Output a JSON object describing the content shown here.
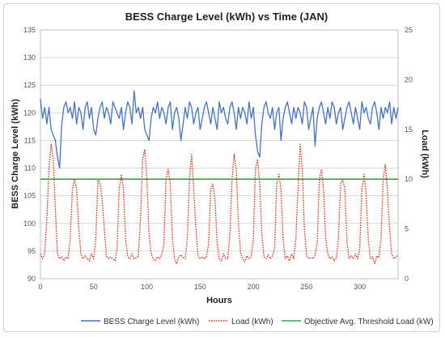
{
  "chart_data": {
    "type": "line",
    "title": "BESS Charge Level (kWh) vs Time (JAN)",
    "xlabel": "Hours",
    "ylabel_left": "BESS Charge Level (kWh)",
    "ylabel_right": "Load (kWh)",
    "xlim": [
      0,
      336
    ],
    "ylim_left": [
      90,
      135
    ],
    "ylim_right": [
      0,
      25
    ],
    "x_ticks": [
      "0",
      "50",
      "100",
      "150",
      "200",
      "250",
      "300"
    ],
    "x_tick_values": [
      0,
      50,
      100,
      150,
      200,
      250,
      300
    ],
    "y_left_ticks": [
      "90",
      "95",
      "100",
      "105",
      "110",
      "115",
      "120",
      "125",
      "130",
      "135"
    ],
    "y_left_tick_values": [
      90,
      95,
      100,
      105,
      110,
      115,
      120,
      125,
      130,
      135
    ],
    "y_right_ticks": [
      "0",
      "5",
      "10",
      "15",
      "20",
      "25"
    ],
    "y_right_tick_values": [
      0,
      5,
      10,
      15,
      20,
      25
    ],
    "grid": true,
    "legend_position": "bottom",
    "series": [
      {
        "name": "BESS Charge Level (kWh)",
        "axis": "left",
        "color": "#4472c4",
        "style": "solid",
        "x": [
          0,
          2,
          4,
          6,
          8,
          10,
          12,
          14,
          16,
          18,
          20,
          22,
          24,
          26,
          28,
          30,
          32,
          34,
          36,
          38,
          40,
          42,
          44,
          46,
          48,
          50,
          52,
          54,
          56,
          58,
          60,
          62,
          64,
          66,
          68,
          70,
          72,
          74,
          76,
          78,
          80,
          82,
          84,
          86,
          88,
          90,
          92,
          94,
          96,
          98,
          100,
          102,
          104,
          106,
          108,
          110,
          112,
          114,
          116,
          118,
          120,
          122,
          124,
          126,
          128,
          130,
          132,
          134,
          136,
          138,
          140,
          142,
          144,
          146,
          148,
          150,
          152,
          154,
          156,
          158,
          160,
          162,
          164,
          166,
          168,
          170,
          172,
          174,
          176,
          178,
          180,
          182,
          184,
          186,
          188,
          190,
          192,
          194,
          196,
          198,
          200,
          202,
          204,
          206,
          208,
          210,
          212,
          214,
          216,
          218,
          220,
          222,
          224,
          226,
          228,
          230,
          232,
          234,
          236,
          238,
          240,
          242,
          244,
          246,
          248,
          250,
          252,
          254,
          256,
          258,
          260,
          262,
          264,
          266,
          268,
          270,
          272,
          274,
          276,
          278,
          280,
          282,
          284,
          286,
          288,
          290,
          292,
          294,
          296,
          298,
          300,
          302,
          304,
          306,
          308,
          310,
          312,
          314,
          316,
          318,
          320,
          322,
          324,
          326,
          328,
          330,
          332,
          334,
          336
        ],
        "values": [
          122.5,
          119,
          121,
          118,
          121,
          117,
          116,
          115,
          112,
          110,
          118,
          121,
          122,
          120,
          121,
          119,
          122,
          118,
          121,
          120,
          117,
          121,
          122,
          119,
          121,
          117,
          116,
          119,
          121,
          122,
          119,
          121,
          120,
          118,
          122,
          121,
          120,
          119,
          121,
          117,
          120,
          122,
          121,
          118,
          124,
          120,
          121,
          119,
          121,
          117,
          116,
          115,
          119,
          121,
          120,
          122,
          119,
          121,
          120,
          118,
          121,
          122,
          117,
          120,
          121,
          119,
          115,
          118,
          121,
          119,
          122,
          121,
          118,
          120,
          121,
          117,
          119,
          121,
          122,
          120,
          118,
          121,
          119,
          117,
          122,
          120,
          121,
          119,
          118,
          121,
          122,
          120,
          117,
          121,
          119,
          121,
          120,
          118,
          122,
          119,
          121,
          116,
          113,
          112,
          118,
          121,
          122,
          120,
          119,
          121,
          117,
          120,
          121,
          115,
          119,
          121,
          122,
          120,
          118,
          121,
          119,
          121,
          120,
          118,
          122,
          121,
          117,
          119,
          121,
          114,
          119,
          121,
          122,
          120,
          118,
          121,
          119,
          122,
          121,
          118,
          120,
          121,
          117,
          119,
          121,
          122,
          120,
          118,
          121,
          119,
          117,
          122,
          120,
          121,
          119,
          118,
          121,
          122,
          120,
          117,
          121,
          119,
          121,
          120,
          122,
          118,
          121,
          119,
          121
        ]
      },
      {
        "name": "Load (kWh)",
        "axis": "right",
        "color": "#e0301e",
        "style": "dotted",
        "x": [
          0,
          2,
          4,
          6,
          8,
          10,
          12,
          14,
          16,
          18,
          20,
          22,
          24,
          26,
          28,
          30,
          32,
          34,
          36,
          38,
          40,
          42,
          44,
          46,
          48,
          50,
          52,
          54,
          56,
          58,
          60,
          62,
          64,
          66,
          68,
          70,
          72,
          74,
          76,
          78,
          80,
          82,
          84,
          86,
          88,
          90,
          92,
          94,
          96,
          98,
          100,
          102,
          104,
          106,
          108,
          110,
          112,
          114,
          116,
          118,
          120,
          122,
          124,
          126,
          128,
          130,
          132,
          134,
          136,
          138,
          140,
          142,
          144,
          146,
          148,
          150,
          152,
          154,
          156,
          158,
          160,
          162,
          164,
          166,
          168,
          170,
          172,
          174,
          176,
          178,
          180,
          182,
          184,
          186,
          188,
          190,
          192,
          194,
          196,
          198,
          200,
          202,
          204,
          206,
          208,
          210,
          212,
          214,
          216,
          218,
          220,
          222,
          224,
          226,
          228,
          230,
          232,
          234,
          236,
          238,
          240,
          242,
          244,
          246,
          248,
          250,
          252,
          254,
          256,
          258,
          260,
          262,
          264,
          266,
          268,
          270,
          272,
          274,
          276,
          278,
          280,
          282,
          284,
          286,
          288,
          290,
          292,
          294,
          296,
          298,
          300,
          302,
          304,
          306,
          308,
          310,
          312,
          314,
          316,
          318,
          320,
          322,
          324,
          326,
          328,
          330,
          332,
          334,
          336
        ],
        "values": [
          2.5,
          2,
          2.6,
          6,
          11,
          13.5,
          12,
          7,
          2.5,
          2,
          2.2,
          1.8,
          2.2,
          2,
          4,
          9,
          10,
          9,
          5,
          2.5,
          2,
          2.3,
          2,
          1.8,
          2.5,
          2,
          4,
          10,
          9.5,
          8,
          5,
          2.3,
          2,
          2.2,
          2,
          1.8,
          3,
          9,
          10.5,
          9,
          4,
          2.2,
          2,
          2.5,
          2,
          2.1,
          2.3,
          6,
          12,
          13,
          10,
          4.5,
          2.5,
          2,
          1.8,
          2.2,
          2,
          2.4,
          3.5,
          10,
          11,
          9.5,
          4,
          2,
          1.5,
          2.2,
          2.4,
          2.1,
          2,
          4,
          10,
          12.5,
          9,
          5,
          2.3,
          2,
          2.2,
          2,
          2.2,
          3.5,
          9,
          9.5,
          8,
          3.5,
          2,
          1.8,
          2.5,
          2,
          2,
          4.5,
          10,
          12.5,
          11,
          5.5,
          2.6,
          2,
          1.7,
          2.3,
          2,
          2.2,
          4,
          11,
          12,
          9.5,
          4.5,
          2.2,
          2,
          2.4,
          2,
          2.3,
          3,
          9.5,
          10.5,
          9,
          4,
          2,
          2.3,
          1.8,
          2.5,
          2,
          4,
          9,
          13.5,
          11,
          5,
          2.3,
          2,
          2.1,
          2,
          2.4,
          3.5,
          10,
          11,
          9,
          4,
          2.5,
          2,
          2.2,
          1.8,
          2.1,
          4,
          9.5,
          10,
          9,
          3.5,
          2,
          2.3,
          2,
          2.5,
          2,
          3,
          9,
          10.5,
          8.5,
          4,
          2,
          2.2,
          1.5,
          2.3,
          2.1,
          4,
          10,
          11.5,
          9,
          5,
          2.5,
          2,
          2.2,
          2.4
        ]
      },
      {
        "name": "Objective Avg. Threshold Load (kW)",
        "axis": "right",
        "color": "#2ea84a",
        "style": "solid",
        "x": [
          0,
          336
        ],
        "values": [
          10,
          10
        ]
      }
    ]
  }
}
